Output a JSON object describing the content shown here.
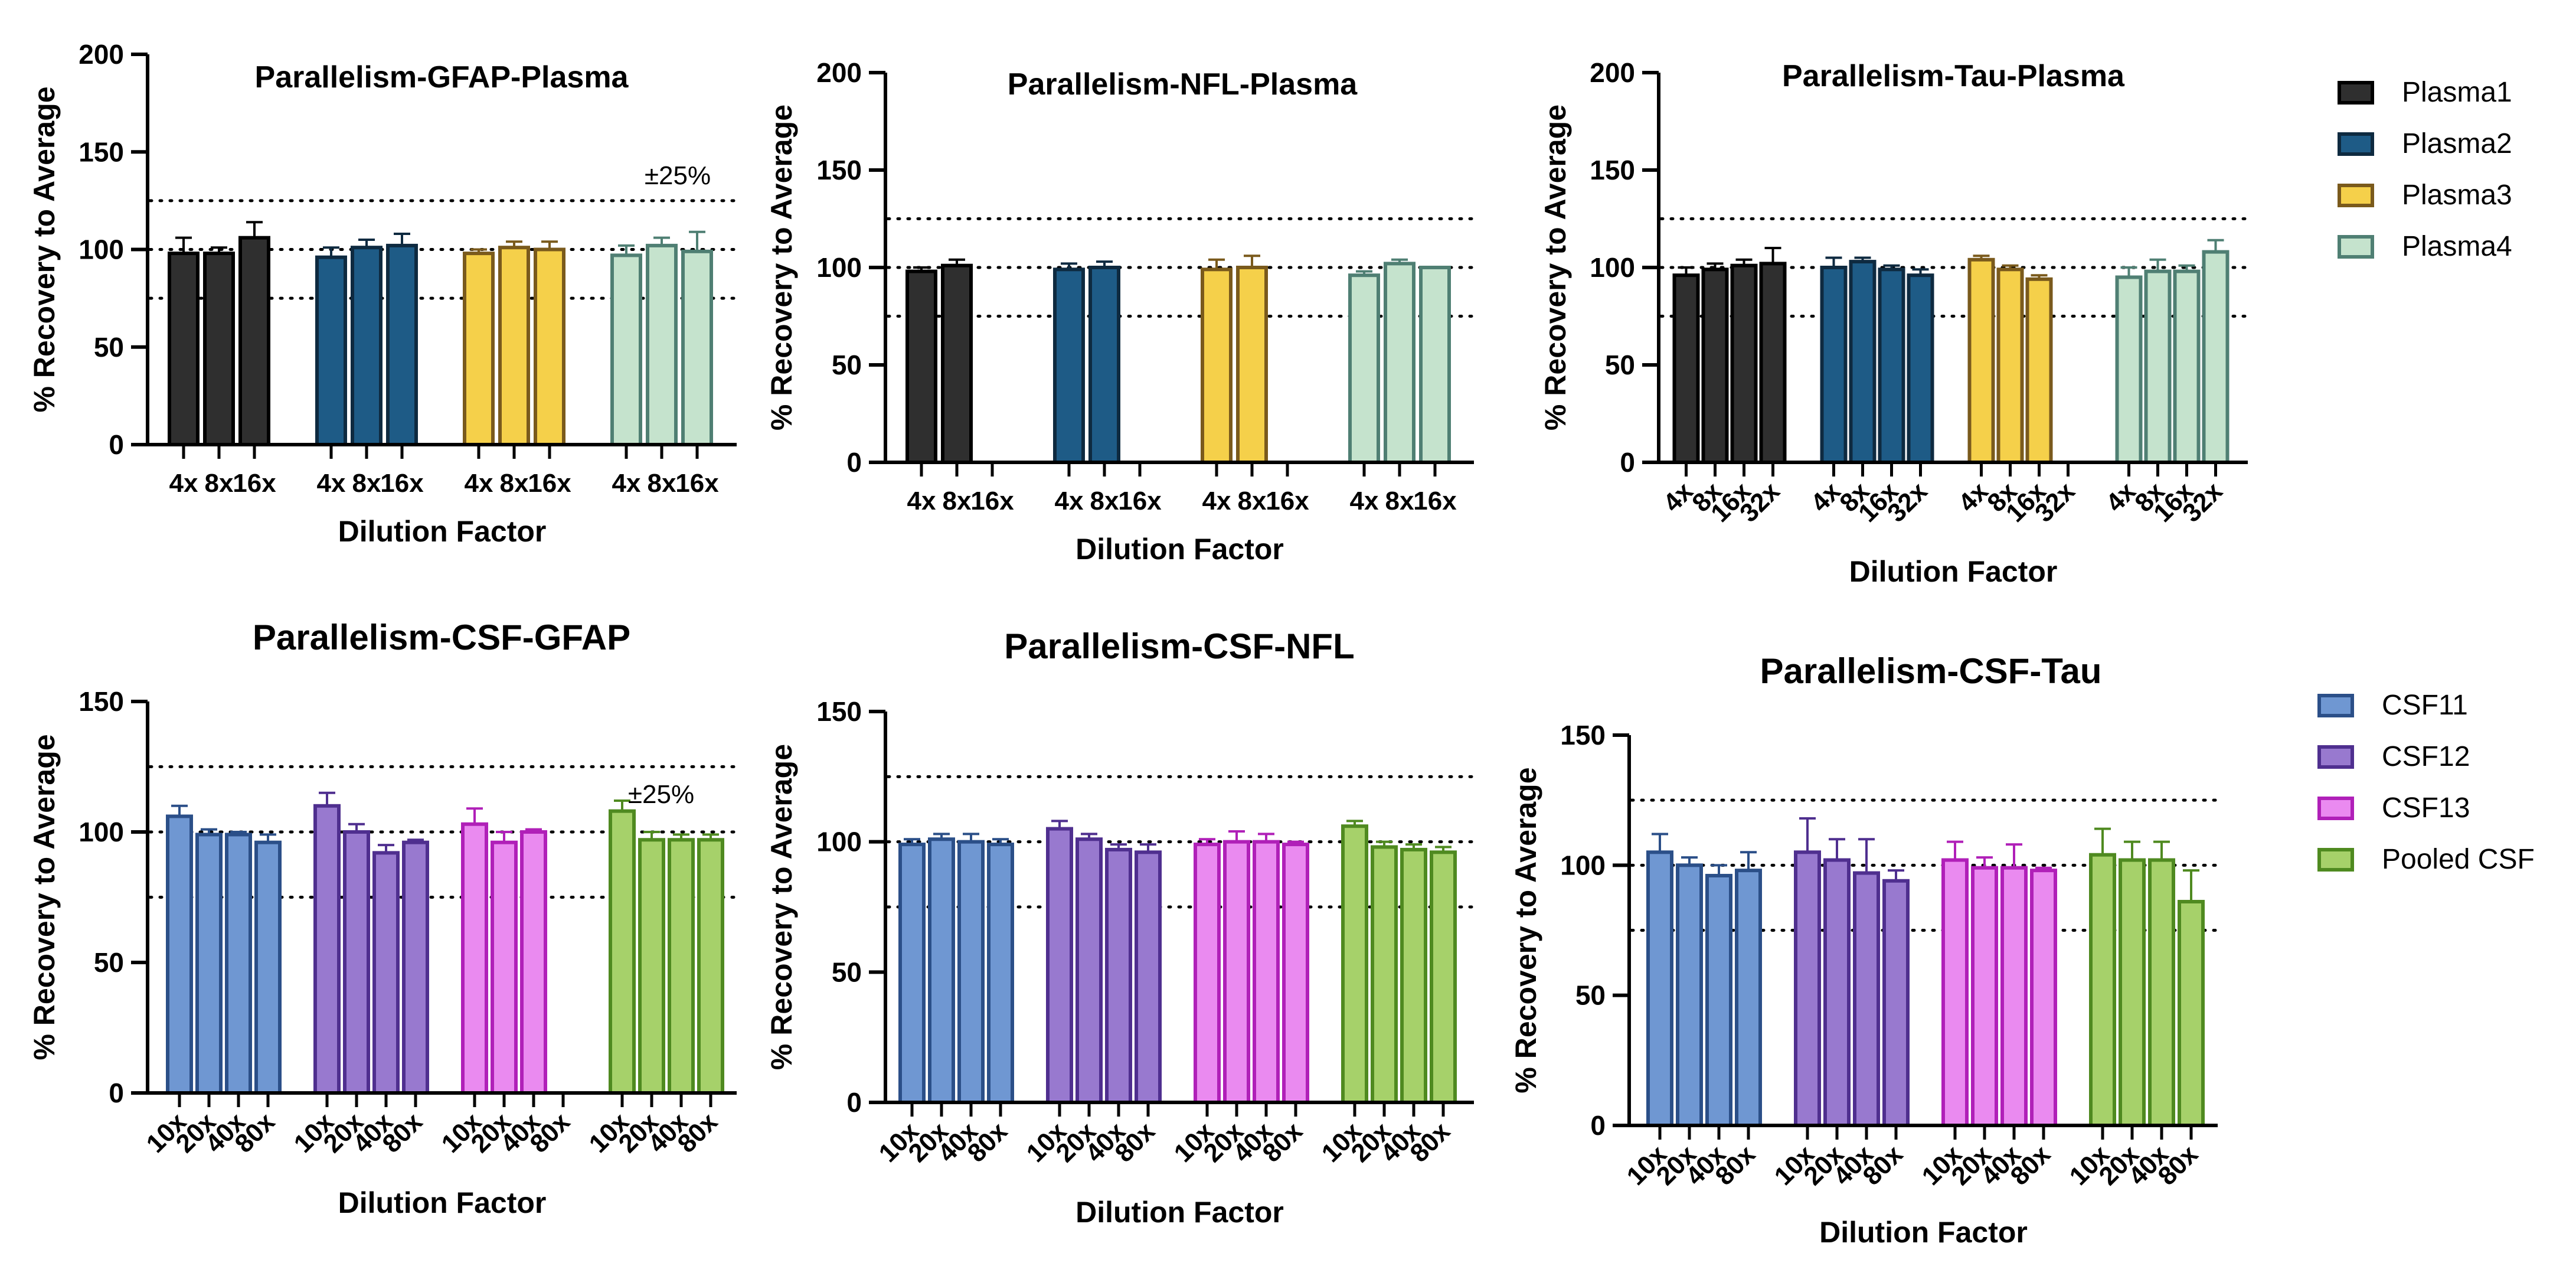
{
  "annotation": "±25%",
  "chart_data": [
    {
      "type": "bar",
      "title": "Parallelism-GFAP-Plasma",
      "xlabel": "Dilution Factor",
      "ylabel": "% Recovery to Average",
      "ylim": [
        0,
        200
      ],
      "yticks": [
        0,
        50,
        100,
        150,
        200
      ],
      "reference_lines": [
        75,
        100,
        125
      ],
      "annotation": "±25%",
      "groups": [
        {
          "name": "Plasma1",
          "categories": [
            "4x",
            "8x",
            "16x"
          ],
          "values": [
            98,
            98,
            106
          ],
          "errors": [
            8,
            3,
            8
          ]
        },
        {
          "name": "Plasma2",
          "categories": [
            "4x",
            "8x",
            "16x"
          ],
          "values": [
            96,
            101,
            102
          ],
          "errors": [
            5,
            4,
            6
          ]
        },
        {
          "name": "Plasma3",
          "categories": [
            "4x",
            "8x",
            "16x"
          ],
          "values": [
            98,
            101,
            100
          ],
          "errors": [
            2,
            3,
            4
          ]
        },
        {
          "name": "Plasma4",
          "categories": [
            "4x",
            "8x",
            "16x"
          ],
          "values": [
            97,
            102,
            99
          ],
          "errors": [
            5,
            4,
            10
          ]
        }
      ]
    },
    {
      "type": "bar",
      "title": "Parallelism-NFL-Plasma",
      "xlabel": "Dilution Factor",
      "ylabel": "% Recovery to Average",
      "ylim": [
        0,
        200
      ],
      "yticks": [
        0,
        50,
        100,
        150,
        200
      ],
      "reference_lines": [
        75,
        100,
        125
      ],
      "groups": [
        {
          "name": "Plasma1",
          "categories": [
            "4x",
            "8x",
            "16x"
          ],
          "values": [
            98,
            101,
            null
          ],
          "errors": [
            2,
            3,
            0
          ]
        },
        {
          "name": "Plasma2",
          "categories": [
            "4x",
            "8x",
            "16x"
          ],
          "values": [
            99,
            100,
            null
          ],
          "errors": [
            3,
            3,
            0
          ]
        },
        {
          "name": "Plasma3",
          "categories": [
            "4x",
            "8x",
            "16x"
          ],
          "values": [
            99,
            100,
            null
          ],
          "errors": [
            5,
            6,
            0
          ]
        },
        {
          "name": "Plasma4",
          "categories": [
            "4x",
            "8x",
            "16x"
          ],
          "values": [
            96,
            102,
            100
          ],
          "errors": [
            2,
            2,
            0
          ]
        }
      ]
    },
    {
      "type": "bar",
      "title": "Parallelism-Tau-Plasma",
      "xlabel": "Dilution Factor",
      "ylabel": "% Recovery to Average",
      "ylim": [
        0,
        200
      ],
      "yticks": [
        0,
        50,
        100,
        150,
        200
      ],
      "reference_lines": [
        75,
        100,
        125
      ],
      "groups": [
        {
          "name": "Plasma1",
          "categories": [
            "4x",
            "8x",
            "16x",
            "32x"
          ],
          "values": [
            96,
            99,
            101,
            102
          ],
          "errors": [
            4,
            3,
            3,
            8
          ]
        },
        {
          "name": "Plasma2",
          "categories": [
            "4x",
            "8x",
            "16x",
            "32x"
          ],
          "values": [
            100,
            103,
            99,
            96
          ],
          "errors": [
            5,
            2,
            2,
            3
          ]
        },
        {
          "name": "Plasma3",
          "categories": [
            "4x",
            "8x",
            "16x",
            "32x"
          ],
          "values": [
            104,
            99,
            94,
            null
          ],
          "errors": [
            2,
            2,
            2,
            0
          ]
        },
        {
          "name": "Plasma4",
          "categories": [
            "4x",
            "8x",
            "16x",
            "32x"
          ],
          "values": [
            95,
            98,
            98,
            108
          ],
          "errors": [
            5,
            6,
            3,
            6
          ]
        }
      ]
    },
    {
      "type": "bar",
      "title": "Parallelism-CSF-GFAP",
      "xlabel": "Dilution Factor",
      "ylabel": "% Recovery to Average",
      "ylim": [
        0,
        150
      ],
      "yticks": [
        0,
        50,
        100,
        150
      ],
      "reference_lines": [
        75,
        100,
        125
      ],
      "annotation": "±25%",
      "groups": [
        {
          "name": "CSF11",
          "categories": [
            "10x",
            "20x",
            "40x",
            "80x"
          ],
          "values": [
            106,
            99,
            99,
            96
          ],
          "errors": [
            4,
            2,
            1,
            3
          ]
        },
        {
          "name": "CSF12",
          "categories": [
            "10x",
            "20x",
            "40x",
            "80x"
          ],
          "values": [
            110,
            100,
            92,
            96
          ],
          "errors": [
            5,
            3,
            3,
            1
          ]
        },
        {
          "name": "CSF13",
          "categories": [
            "10x",
            "20x",
            "40x",
            "80x"
          ],
          "values": [
            103,
            96,
            100,
            null
          ],
          "errors": [
            6,
            4,
            1,
            0
          ]
        },
        {
          "name": "Pooled CSF",
          "categories": [
            "10x",
            "20x",
            "40x",
            "80x"
          ],
          "values": [
            108,
            97,
            97,
            97
          ],
          "errors": [
            4,
            3,
            2,
            2
          ]
        }
      ]
    },
    {
      "type": "bar",
      "title": "Parallelism-CSF-NFL",
      "xlabel": "Dilution Factor",
      "ylabel": "% Recovery to Average",
      "ylim": [
        0,
        150
      ],
      "yticks": [
        0,
        50,
        100,
        150
      ],
      "reference_lines": [
        75,
        100,
        125
      ],
      "groups": [
        {
          "name": "CSF11",
          "categories": [
            "10x",
            "20x",
            "40x",
            "80x"
          ],
          "values": [
            99,
            101,
            100,
            99
          ],
          "errors": [
            2,
            2,
            3,
            2
          ]
        },
        {
          "name": "CSF12",
          "categories": [
            "10x",
            "20x",
            "40x",
            "80x"
          ],
          "values": [
            105,
            101,
            97,
            96
          ],
          "errors": [
            3,
            2,
            2,
            3
          ]
        },
        {
          "name": "CSF13",
          "categories": [
            "10x",
            "20x",
            "40x",
            "80x"
          ],
          "values": [
            99,
            100,
            100,
            99
          ],
          "errors": [
            2,
            4,
            3,
            1
          ]
        },
        {
          "name": "Pooled CSF",
          "categories": [
            "10x",
            "20x",
            "40x",
            "80x"
          ],
          "values": [
            106,
            98,
            97,
            96
          ],
          "errors": [
            2,
            2,
            2,
            2
          ]
        }
      ]
    },
    {
      "type": "bar",
      "title": "Parallelism-CSF-Tau",
      "xlabel": "Dilution Factor",
      "ylabel": "% Recovery to Average",
      "ylim": [
        0,
        150
      ],
      "yticks": [
        0,
        50,
        100,
        150
      ],
      "reference_lines": [
        75,
        100,
        125
      ],
      "groups": [
        {
          "name": "CSF11",
          "categories": [
            "10x",
            "20x",
            "40x",
            "80x"
          ],
          "values": [
            105,
            100,
            96,
            98
          ],
          "errors": [
            7,
            3,
            4,
            7
          ]
        },
        {
          "name": "CSF12",
          "categories": [
            "10x",
            "20x",
            "40x",
            "80x"
          ],
          "values": [
            105,
            102,
            97,
            94
          ],
          "errors": [
            13,
            8,
            13,
            4
          ]
        },
        {
          "name": "CSF13",
          "categories": [
            "10x",
            "20x",
            "40x",
            "80x"
          ],
          "values": [
            102,
            99,
            99,
            98
          ],
          "errors": [
            7,
            4,
            9,
            1
          ]
        },
        {
          "name": "Pooled CSF",
          "categories": [
            "10x",
            "20x",
            "40x",
            "80x"
          ],
          "values": [
            104,
            102,
            102,
            86
          ],
          "errors": [
            10,
            7,
            7,
            12
          ]
        }
      ]
    }
  ],
  "legends": [
    {
      "position": "top-right",
      "items": [
        {
          "label": "Plasma1",
          "fill": "#2f2f2f",
          "stroke": "#000000"
        },
        {
          "label": "Plasma2",
          "fill": "#1e5b86",
          "stroke": "#0e2a40"
        },
        {
          "label": "Plasma3",
          "fill": "#f5d04a",
          "stroke": "#7a5a1c"
        },
        {
          "label": "Plasma4",
          "fill": "#c5e3cd",
          "stroke": "#4f7f73"
        }
      ]
    },
    {
      "position": "bottom-right",
      "items": [
        {
          "label": "CSF11",
          "fill": "#6f97d2",
          "stroke": "#2b4f88"
        },
        {
          "label": "CSF12",
          "fill": "#9879cf",
          "stroke": "#4f2f8f"
        },
        {
          "label": "CSF13",
          "fill": "#ea8af0",
          "stroke": "#b020b8"
        },
        {
          "label": "Pooled CSF",
          "fill": "#a6d16a",
          "stroke": "#4f8a20"
        }
      ]
    }
  ],
  "colors": {
    "axis": "#000000",
    "reference_line": "#000000",
    "error_bar_default": "#333333"
  }
}
